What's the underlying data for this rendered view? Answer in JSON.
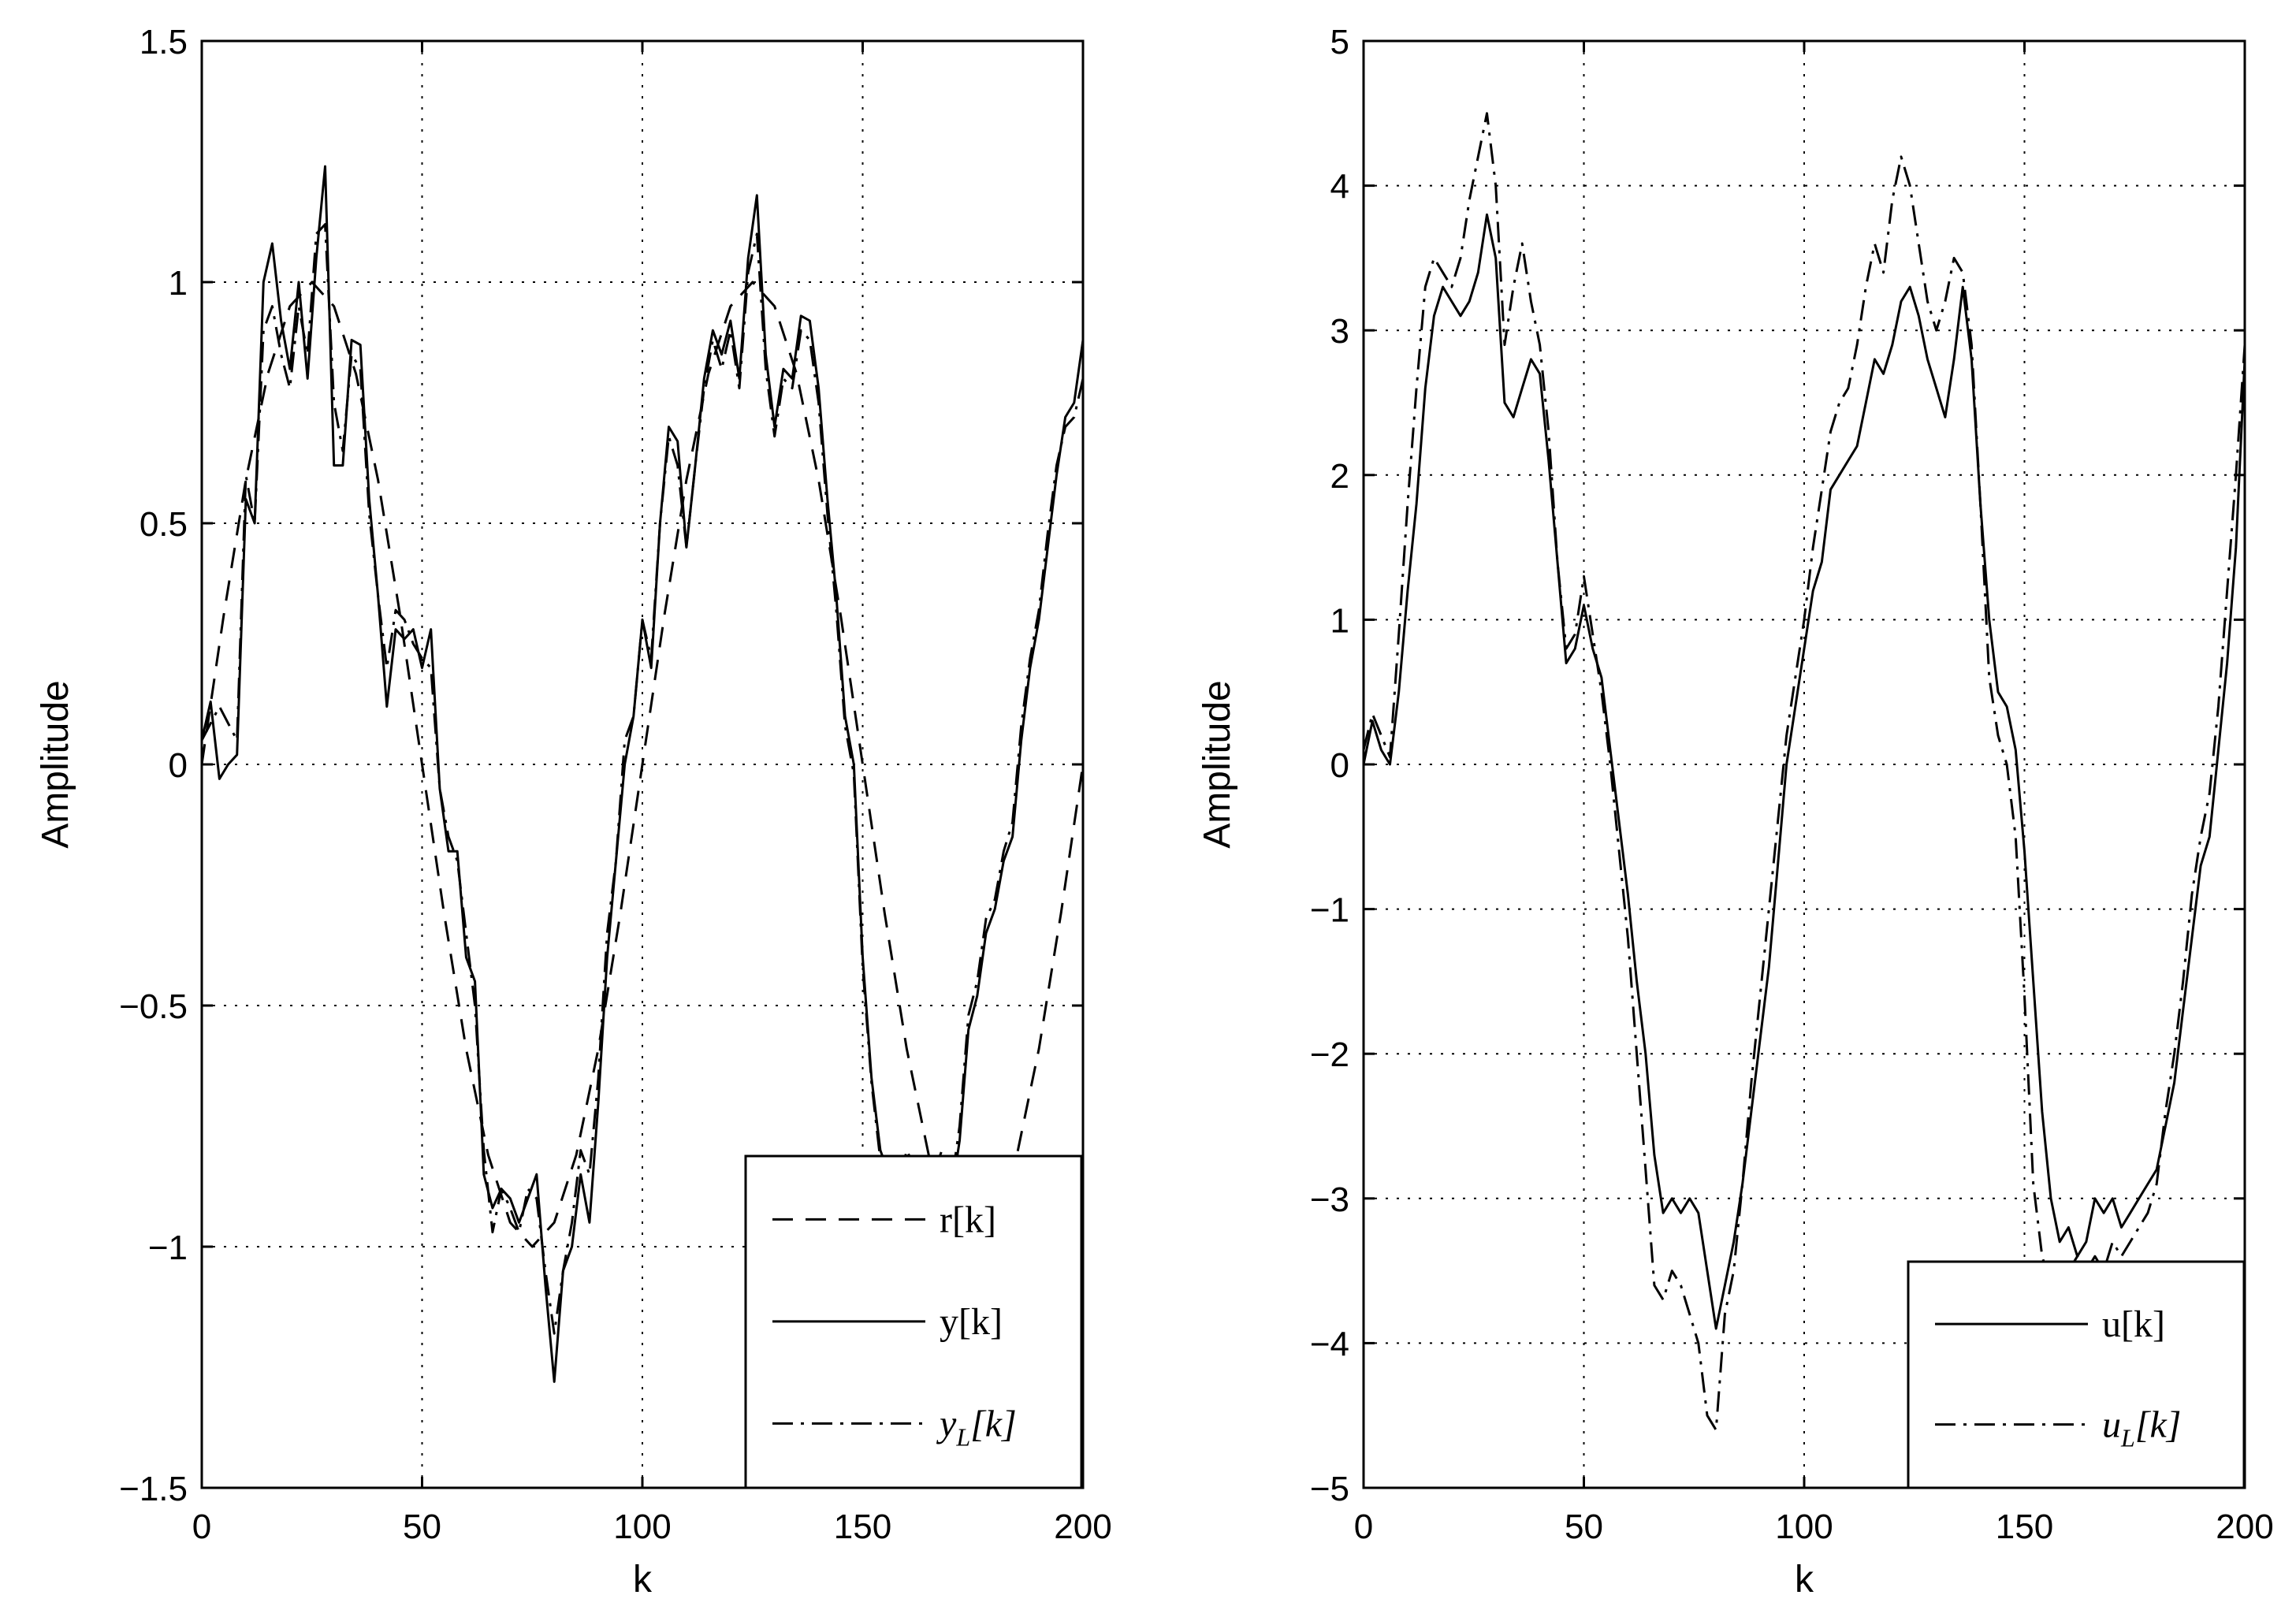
{
  "chart_data": [
    {
      "type": "line",
      "xlabel": "k",
      "ylabel": "Amplitude",
      "xlim": [
        0,
        200
      ],
      "ylim": [
        -1.5,
        1.5
      ],
      "xticks": [
        0,
        50,
        100,
        150,
        200
      ],
      "xtick_labels": [
        "0",
        "50",
        "100",
        "150",
        "200"
      ],
      "yticks": [
        1.5,
        1,
        0.5,
        0,
        -0.5,
        -1,
        -1.5
      ],
      "ytick_labels": [
        "1.5",
        "1",
        "0.5",
        "0",
        "−0.5",
        "−1",
        "−1.5"
      ],
      "grid": true,
      "legend_position": "bottom-right",
      "series": [
        {
          "key": "r",
          "name": "r[k]",
          "name_main": "r[k]",
          "name_sub": "",
          "style": "dashed",
          "x": [
            0,
            5,
            10,
            15,
            20,
            25,
            30,
            35,
            40,
            45,
            50,
            55,
            60,
            65,
            70,
            75,
            80,
            85,
            90,
            95,
            100,
            105,
            110,
            115,
            120,
            125,
            130,
            135,
            140,
            145,
            150,
            155,
            160,
            165,
            170,
            175,
            180,
            185,
            190,
            195,
            200
          ],
          "y": [
            0,
            0.31,
            0.59,
            0.81,
            0.95,
            1.0,
            0.95,
            0.81,
            0.59,
            0.31,
            0,
            -0.31,
            -0.59,
            -0.81,
            -0.95,
            -1.0,
            -0.95,
            -0.81,
            -0.59,
            -0.31,
            0,
            0.31,
            0.59,
            0.81,
            0.95,
            1.0,
            0.95,
            0.81,
            0.59,
            0.31,
            0,
            -0.31,
            -0.59,
            -0.81,
            -0.95,
            -1.0,
            -0.95,
            -0.81,
            -0.59,
            -0.31,
            0
          ]
        },
        {
          "key": "y",
          "name": "y[k]",
          "name_main": "y[k]",
          "name_sub": "",
          "style": "solid",
          "x": [
            0,
            2,
            4,
            6,
            8,
            10,
            12,
            14,
            16,
            18,
            20,
            22,
            24,
            26,
            28,
            30,
            32,
            34,
            36,
            38,
            40,
            42,
            44,
            46,
            48,
            50,
            52,
            54,
            56,
            58,
            60,
            62,
            64,
            66,
            68,
            70,
            72,
            74,
            76,
            78,
            80,
            82,
            84,
            86,
            88,
            90,
            92,
            94,
            96,
            98,
            100,
            102,
            104,
            106,
            108,
            110,
            112,
            114,
            116,
            118,
            120,
            122,
            124,
            126,
            128,
            130,
            132,
            134,
            136,
            138,
            140,
            142,
            144,
            146,
            148,
            150,
            152,
            154,
            156,
            158,
            160,
            162,
            164,
            166,
            168,
            170,
            172,
            174,
            176,
            178,
            180,
            182,
            184,
            186,
            188,
            190,
            192,
            194,
            196,
            198,
            200
          ],
          "y": [
            0.05,
            0.13,
            -0.03,
            0.0,
            0.02,
            0.55,
            0.5,
            1.0,
            1.08,
            0.92,
            0.82,
            1.0,
            0.8,
            1.05,
            1.24,
            0.62,
            0.62,
            0.88,
            0.87,
            0.55,
            0.35,
            0.12,
            0.28,
            0.26,
            0.28,
            0.2,
            0.28,
            -0.05,
            -0.18,
            -0.18,
            -0.4,
            -0.45,
            -0.85,
            -0.92,
            -0.88,
            -0.9,
            -0.95,
            -0.9,
            -0.85,
            -1.08,
            -1.28,
            -1.05,
            -1.0,
            -0.85,
            -0.95,
            -0.7,
            -0.4,
            -0.2,
            0.0,
            0.1,
            0.3,
            0.2,
            0.5,
            0.7,
            0.67,
            0.45,
            0.62,
            0.8,
            0.9,
            0.85,
            0.92,
            0.8,
            1.05,
            1.18,
            0.85,
            0.7,
            0.82,
            0.8,
            0.93,
            0.92,
            0.78,
            0.55,
            0.35,
            0.1,
            0.0,
            -0.4,
            -0.65,
            -0.8,
            -0.85,
            -0.9,
            -0.84,
            -0.85,
            -0.84,
            -0.86,
            -0.83,
            -0.9,
            -0.78,
            -0.55,
            -0.48,
            -0.35,
            -0.3,
            -0.2,
            -0.15,
            0.05,
            0.2,
            0.3,
            0.45,
            0.6,
            0.72,
            0.75,
            0.88
          ]
        },
        {
          "key": "yL",
          "name": "y_L[k]",
          "name_main": "y",
          "name_sub": "L",
          "name_suffix": "[k]",
          "style": "dashdot",
          "x": [
            0,
            4,
            8,
            10,
            12,
            14,
            16,
            18,
            20,
            22,
            24,
            26,
            28,
            30,
            32,
            34,
            36,
            38,
            40,
            42,
            44,
            46,
            48,
            50,
            52,
            54,
            56,
            58,
            60,
            62,
            64,
            66,
            68,
            70,
            72,
            74,
            76,
            78,
            80,
            82,
            84,
            86,
            88,
            90,
            92,
            94,
            96,
            98,
            100,
            102,
            104,
            106,
            108,
            110,
            112,
            114,
            116,
            118,
            120,
            122,
            124,
            126,
            128,
            130,
            132,
            134,
            136,
            138,
            140,
            142,
            144,
            146,
            148,
            150,
            152,
            154,
            156,
            158,
            160,
            162,
            164,
            166,
            168,
            170,
            172,
            174,
            176,
            178,
            180,
            182,
            184,
            186,
            188,
            190,
            192,
            194,
            196,
            198,
            200
          ],
          "y": [
            0.05,
            0.12,
            0.05,
            0.6,
            0.5,
            0.9,
            0.95,
            0.85,
            0.78,
            0.95,
            0.85,
            1.1,
            1.12,
            0.75,
            0.65,
            0.85,
            0.82,
            0.52,
            0.35,
            0.2,
            0.32,
            0.3,
            0.25,
            0.22,
            0.2,
            -0.05,
            -0.15,
            -0.2,
            -0.35,
            -0.5,
            -0.8,
            -0.97,
            -0.88,
            -0.92,
            -0.97,
            -0.88,
            -0.9,
            -1.05,
            -1.18,
            -1.05,
            -0.95,
            -0.8,
            -0.85,
            -0.65,
            -0.35,
            -0.2,
            0.05,
            0.1,
            0.3,
            0.22,
            0.5,
            0.68,
            0.62,
            0.45,
            0.62,
            0.78,
            0.88,
            0.82,
            0.9,
            0.78,
            1.02,
            1.1,
            0.82,
            0.68,
            0.8,
            0.78,
            0.9,
            0.88,
            0.75,
            0.52,
            0.32,
            0.08,
            -0.02,
            -0.42,
            -0.66,
            -0.82,
            -0.84,
            -0.88,
            -0.8,
            -0.84,
            -0.82,
            -0.85,
            -0.8,
            -0.88,
            -0.75,
            -0.52,
            -0.45,
            -0.32,
            -0.28,
            -0.18,
            -0.12,
            0.08,
            0.22,
            0.32,
            0.48,
            0.62,
            0.7,
            0.72,
            0.8
          ]
        }
      ]
    },
    {
      "type": "line",
      "xlabel": "k",
      "ylabel": "Amplitude",
      "xlim": [
        0,
        200
      ],
      "ylim": [
        -5,
        5
      ],
      "xticks": [
        0,
        50,
        100,
        150,
        200
      ],
      "xtick_labels": [
        "0",
        "50",
        "100",
        "150",
        "200"
      ],
      "yticks": [
        5,
        4,
        3,
        2,
        1,
        0,
        -1,
        -2,
        -3,
        -4,
        -5
      ],
      "ytick_labels": [
        "5",
        "4",
        "3",
        "2",
        "1",
        "0",
        "−1",
        "−2",
        "−3",
        "−4",
        "−5"
      ],
      "grid": true,
      "legend_position": "bottom-right",
      "series": [
        {
          "key": "u",
          "name": "u[k]",
          "name_main": "u[k]",
          "name_sub": "",
          "style": "solid",
          "x": [
            0,
            2,
            4,
            6,
            8,
            10,
            12,
            14,
            16,
            18,
            20,
            22,
            24,
            26,
            28,
            30,
            32,
            34,
            36,
            38,
            40,
            42,
            44,
            46,
            48,
            50,
            52,
            54,
            56,
            58,
            60,
            62,
            64,
            66,
            68,
            70,
            72,
            74,
            76,
            78,
            80,
            82,
            84,
            86,
            88,
            90,
            92,
            94,
            96,
            98,
            100,
            102,
            104,
            106,
            108,
            110,
            112,
            114,
            116,
            118,
            120,
            122,
            124,
            126,
            128,
            130,
            132,
            134,
            136,
            138,
            140,
            142,
            144,
            146,
            148,
            150,
            152,
            154,
            156,
            158,
            160,
            162,
            164,
            166,
            168,
            170,
            172,
            174,
            176,
            178,
            180,
            182,
            184,
            186,
            188,
            190,
            192,
            194,
            196,
            198,
            200
          ],
          "y": [
            0.0,
            0.3,
            0.1,
            0.0,
            0.5,
            1.2,
            1.8,
            2.6,
            3.1,
            3.3,
            3.2,
            3.1,
            3.2,
            3.4,
            3.8,
            3.5,
            2.5,
            2.4,
            2.6,
            2.8,
            2.7,
            2.1,
            1.4,
            0.7,
            0.8,
            1.1,
            0.8,
            0.6,
            0.1,
            -0.4,
            -0.9,
            -1.5,
            -2.0,
            -2.7,
            -3.1,
            -3.0,
            -3.1,
            -3.0,
            -3.1,
            -3.5,
            -3.9,
            -3.6,
            -3.3,
            -2.9,
            -2.4,
            -1.9,
            -1.4,
            -0.7,
            0.0,
            0.4,
            0.8,
            1.2,
            1.4,
            1.9,
            2.0,
            2.1,
            2.2,
            2.5,
            2.8,
            2.7,
            2.9,
            3.2,
            3.3,
            3.1,
            2.8,
            2.6,
            2.4,
            2.8,
            3.3,
            2.8,
            1.8,
            1.0,
            0.5,
            0.4,
            0.1,
            -0.6,
            -1.5,
            -2.4,
            -3.0,
            -3.3,
            -3.2,
            -3.4,
            -3.3,
            -3.0,
            -3.1,
            -3.0,
            -3.2,
            -3.1,
            -3.0,
            -2.9,
            -2.8,
            -2.5,
            -2.2,
            -1.7,
            -1.2,
            -0.7,
            -0.5,
            0.1,
            0.7,
            1.5,
            2.8
          ]
        },
        {
          "key": "uL",
          "name": "u_L[k]",
          "name_main": "u",
          "name_sub": "L",
          "name_suffix": "[k]",
          "style": "dashdot",
          "x": [
            0,
            2,
            4,
            6,
            8,
            10,
            12,
            14,
            16,
            18,
            20,
            22,
            24,
            26,
            28,
            30,
            32,
            34,
            36,
            38,
            40,
            42,
            44,
            46,
            48,
            50,
            52,
            54,
            56,
            58,
            60,
            62,
            64,
            66,
            68,
            70,
            72,
            74,
            76,
            78,
            80,
            82,
            84,
            86,
            88,
            90,
            92,
            94,
            96,
            98,
            100,
            102,
            104,
            106,
            108,
            110,
            112,
            114,
            116,
            118,
            120,
            122,
            124,
            126,
            128,
            130,
            132,
            134,
            136,
            138,
            140,
            142,
            144,
            146,
            148,
            150,
            152,
            154,
            156,
            158,
            160,
            162,
            164,
            166,
            168,
            170,
            172,
            174,
            176,
            178,
            180,
            182,
            184,
            186,
            188,
            190,
            192,
            194,
            196,
            198,
            200
          ],
          "y": [
            0.1,
            0.35,
            0.2,
            0.05,
            0.9,
            1.8,
            2.6,
            3.3,
            3.5,
            3.4,
            3.3,
            3.5,
            3.9,
            4.2,
            4.5,
            4.0,
            2.9,
            3.3,
            3.6,
            3.2,
            2.9,
            2.3,
            1.4,
            0.8,
            0.9,
            1.3,
            0.9,
            0.5,
            0.0,
            -0.6,
            -1.2,
            -2.0,
            -2.8,
            -3.6,
            -3.7,
            -3.5,
            -3.6,
            -3.8,
            -4.0,
            -4.5,
            -4.6,
            -3.8,
            -3.5,
            -2.9,
            -2.2,
            -1.6,
            -1.0,
            -0.4,
            0.2,
            0.6,
            1.0,
            1.5,
            1.9,
            2.3,
            2.5,
            2.6,
            2.9,
            3.3,
            3.6,
            3.4,
            3.9,
            4.2,
            4.0,
            3.6,
            3.2,
            3.0,
            3.2,
            3.5,
            3.4,
            2.9,
            1.8,
            0.6,
            0.2,
            0.0,
            -0.5,
            -1.6,
            -2.9,
            -3.4,
            -3.6,
            -3.5,
            -3.5,
            -3.4,
            -3.5,
            -3.4,
            -3.5,
            -3.3,
            -3.4,
            -3.3,
            -3.2,
            -3.1,
            -2.9,
            -2.4,
            -2.0,
            -1.5,
            -0.9,
            -0.5,
            -0.2,
            0.4,
            1.2,
            2.0,
            2.9
          ]
        }
      ]
    }
  ]
}
